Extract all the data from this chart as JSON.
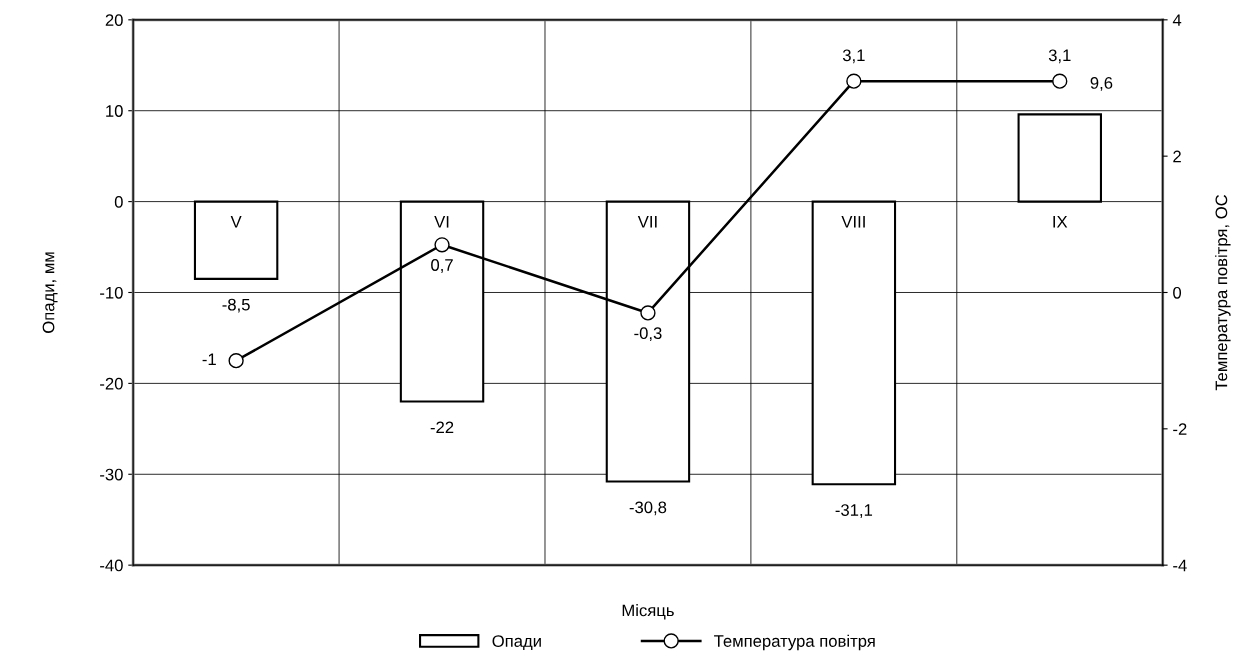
{
  "chart_data": {
    "type": "bar",
    "xlabel": "Місяць",
    "ylabel": "Опади, мм",
    "y2label": "Температура повітря, ОС",
    "categories": [
      "V",
      "VI",
      "VII",
      "VIII",
      "IX"
    ],
    "series": [
      {
        "name": "Опади",
        "color": "#ffffff",
        "values": [
          -8.5,
          -22,
          -30.8,
          -31.1,
          9.6
        ],
        "value_labels": [
          "-8,5",
          "-22",
          "-30,8",
          "-31,1",
          "9,6"
        ]
      },
      {
        "name": "Температура повітря",
        "type": "line",
        "axis": "y2",
        "color": "#000000",
        "marker": "circle",
        "values": [
          -1,
          0.7,
          -0.3,
          3.1,
          3.1
        ],
        "value_labels": [
          "-1",
          "0,7",
          "-0,3",
          "3,1",
          "3,1"
        ]
      }
    ],
    "ylim": [
      -40,
      20
    ],
    "yticks": [
      -40,
      -30,
      -20,
      -10,
      0,
      10,
      20
    ],
    "y2lim": [
      -4,
      4
    ],
    "y2ticks": [
      -4,
      -2,
      0,
      2,
      4
    ],
    "grid": true,
    "legend": "bottom"
  }
}
